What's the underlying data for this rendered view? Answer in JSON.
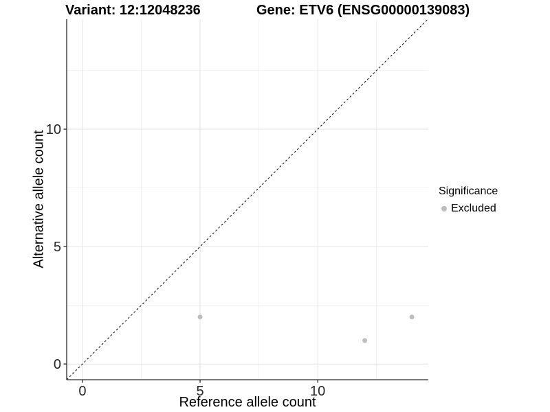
{
  "chart_data": {
    "type": "scatter",
    "title_left": "Variant: 12:12048236",
    "title_right": "Gene: ETV6 (ENSG00000139083)",
    "xlabel": "Reference allele count",
    "ylabel": "Alternative allele count",
    "xlim": [
      -0.67,
      14.7
    ],
    "ylim": [
      -0.67,
      14.68
    ],
    "x_major_ticks": [
      0,
      5,
      10
    ],
    "y_major_ticks": [
      0,
      5,
      10
    ],
    "x_minor_gridlines": [
      2.5,
      7.5,
      12.5
    ],
    "y_minor_gridlines": [
      2.5,
      7.5,
      12.5
    ],
    "grid": true,
    "series": [
      {
        "name": "Excluded",
        "color": "#bebebe",
        "points": [
          {
            "x": 5,
            "y": 2
          },
          {
            "x": 12,
            "y": 1
          },
          {
            "x": 14,
            "y": 2
          }
        ]
      }
    ],
    "abline": {
      "slope": 1,
      "intercept": 0,
      "style": "dashed",
      "color": "#000000"
    },
    "legend": {
      "title": "Significance",
      "position": "right",
      "entries": [
        {
          "label": "Excluded",
          "color": "#bebebe"
        }
      ]
    },
    "colors": {
      "background": "#ffffff",
      "grid_major": "#e4e4e4",
      "grid_minor": "#f2f2f2",
      "axis_line": "#2b2b2b",
      "tick_text": "#262626",
      "point": "#bebebe"
    }
  }
}
